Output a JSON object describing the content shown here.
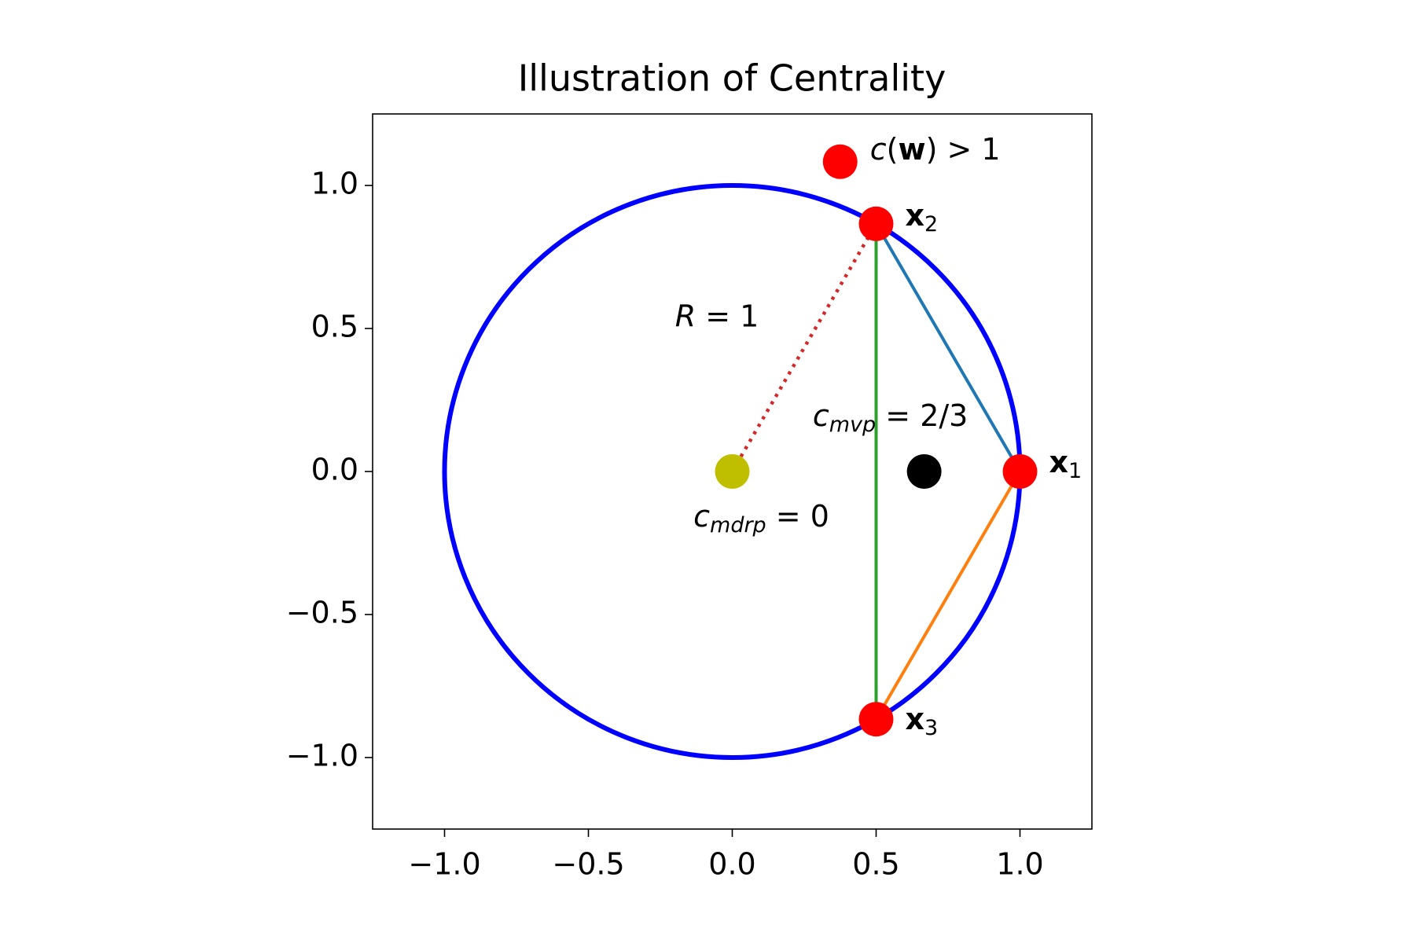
{
  "chart_data": {
    "type": "scatter",
    "title": "Illustration of Centrality",
    "xlim": [
      -1.25,
      1.25
    ],
    "ylim": [
      -1.25,
      1.25
    ],
    "xticks": [
      {
        "value": -1,
        "label": "−1.0"
      },
      {
        "value": -0.5,
        "label": "−0.5"
      },
      {
        "value": 0,
        "label": "0.0"
      },
      0.5,
      {
        "value": 1,
        "label": "1.0"
      }
    ],
    "yticks": [
      {
        "value": -1,
        "label": "−1.0"
      },
      {
        "value": -0.5,
        "label": "−0.5"
      },
      {
        "value": 0,
        "label": "0.0"
      },
      0.5,
      {
        "value": 1,
        "label": "1.0"
      }
    ],
    "grid": false,
    "circle": {
      "center": [
        0,
        0
      ],
      "radius": 1,
      "color": "#0000ff"
    },
    "lines": [
      {
        "x": [
          0.5,
          1
        ],
        "y": [
          0.866,
          0
        ],
        "color": "#1f77b4",
        "linestyle": "solid"
      },
      {
        "x": [
          1,
          0.5
        ],
        "y": [
          0,
          -0.866
        ],
        "color": "#ff7f0e",
        "linestyle": "solid"
      },
      {
        "x": [
          0.5,
          0.5
        ],
        "y": [
          0.866,
          -0.866
        ],
        "color": "#2ca02c",
        "linestyle": "solid"
      },
      {
        "x": [
          0,
          0.5
        ],
        "y": [
          0,
          0.866
        ],
        "color": "#d62728",
        "linestyle": "dotted",
        "label": [
          {
            "text": "R",
            "italic": true
          },
          {
            "text": " = 1"
          }
        ]
      }
    ],
    "points": [
      {
        "x": 0.375,
        "y": 1.083,
        "color": "#ff0000",
        "label": [
          {
            "text": "c",
            "italic": true
          },
          {
            "text": "("
          },
          {
            "text": "w",
            "bold": true
          },
          {
            "text": ") > 1"
          }
        ]
      },
      {
        "x": 0.5,
        "y": 0.866,
        "color": "#ff0000",
        "label": [
          {
            "text": "x",
            "bold": true
          },
          {
            "text": "2",
            "sub": true
          }
        ]
      },
      {
        "x": 1,
        "y": 0,
        "color": "#ff0000",
        "label": [
          {
            "text": "x",
            "bold": true
          },
          {
            "text": "1",
            "sub": true
          }
        ]
      },
      {
        "x": 0.5,
        "y": -0.866,
        "color": "#ff0000",
        "label": [
          {
            "text": "x",
            "bold": true
          },
          {
            "text": "3",
            "sub": true
          }
        ]
      },
      {
        "x": 0,
        "y": 0,
        "color": "#bfbf00",
        "label": [
          {
            "text": "c",
            "italic": true
          },
          {
            "text": "mdrp",
            "italic": true,
            "sub": true
          },
          {
            "text": " = 0"
          }
        ]
      },
      {
        "x": 0.667,
        "y": 0,
        "color": "#000000",
        "label": [
          {
            "text": "c",
            "italic": true
          },
          {
            "text": "mvp",
            "italic": true,
            "sub": true
          },
          {
            "text": " = 2/3"
          }
        ]
      }
    ]
  }
}
